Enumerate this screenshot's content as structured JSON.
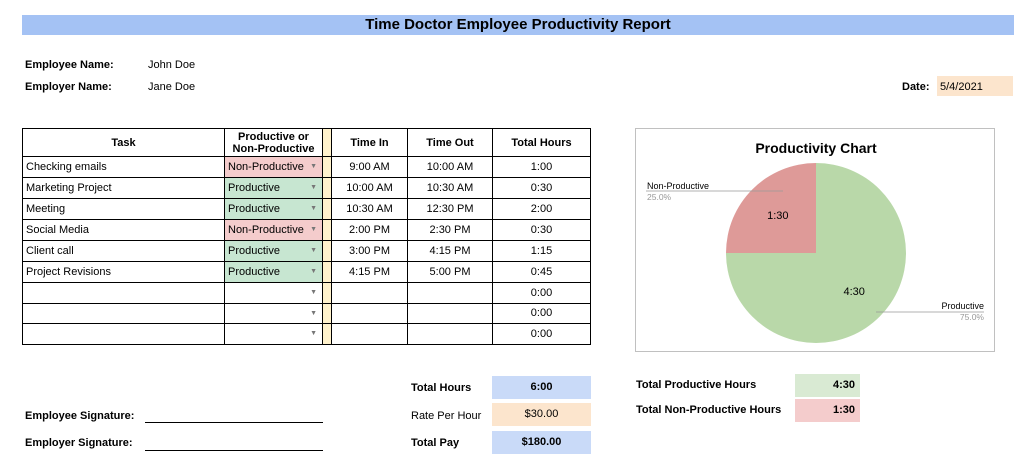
{
  "title": "Time Doctor Employee Productivity Report",
  "employee": {
    "label": "Employee Name:",
    "value": "John Doe"
  },
  "employer": {
    "label": "Employer Name:",
    "value": "Jane Doe"
  },
  "date": {
    "label": "Date:",
    "value": "5/4/2021"
  },
  "table": {
    "headers": {
      "task": "Task",
      "productive": "Productive or Non-Productive",
      "time_in": "Time In",
      "time_out": "Time Out",
      "total_hours": "Total Hours"
    },
    "rows": [
      {
        "task": "Checking emails",
        "status": "Non-Productive",
        "in": "9:00 AM",
        "out": "10:00 AM",
        "hours": "1:00"
      },
      {
        "task": "Marketing Project",
        "status": "Productive",
        "in": "10:00 AM",
        "out": "10:30 AM",
        "hours": "0:30"
      },
      {
        "task": "Meeting",
        "status": "Productive",
        "in": "10:30 AM",
        "out": "12:30 PM",
        "hours": "2:00"
      },
      {
        "task": "Social Media",
        "status": "Non-Productive",
        "in": "2:00 PM",
        "out": "2:30 PM",
        "hours": "0:30"
      },
      {
        "task": "Client call",
        "status": "Productive",
        "in": "3:00 PM",
        "out": "4:15 PM",
        "hours": "1:15"
      },
      {
        "task": "Project Revisions",
        "status": "Productive",
        "in": "4:15 PM",
        "out": "5:00 PM",
        "hours": "0:45"
      },
      {
        "task": "",
        "status": "",
        "in": "",
        "out": "",
        "hours": "0:00"
      },
      {
        "task": "",
        "status": "",
        "in": "",
        "out": "",
        "hours": "0:00"
      },
      {
        "task": "",
        "status": "",
        "in": "",
        "out": "",
        "hours": "0:00"
      }
    ]
  },
  "totals": {
    "total_hours_label": "Total Hours",
    "total_hours": "6:00",
    "rate_label": "Rate Per Hour",
    "rate": "$30.00",
    "total_pay_label": "Total Pay",
    "total_pay": "$180.00"
  },
  "summary": {
    "productive_label": "Total Productive Hours",
    "productive": "4:30",
    "nonproductive_label": "Total Non-Productive Hours",
    "nonproductive": "1:30"
  },
  "signatures": {
    "employee": "Employee Signature:",
    "employer": "Employer Signature:"
  },
  "colors": {
    "title_bg": "#a4c2f4",
    "productive": "#b6d7a8",
    "nonproductive": "#e06666",
    "date_bg": "#fce5cd"
  },
  "chart_data": {
    "type": "pie",
    "title": "Productivity Chart",
    "slices": [
      {
        "name": "Productive",
        "value": 4.5,
        "label": "4:30",
        "percent": "75.0%",
        "color": "#b9d8a9"
      },
      {
        "name": "Non-Productive",
        "value": 1.5,
        "label": "1:30",
        "percent": "25.0%",
        "color": "#de9a98"
      }
    ]
  }
}
